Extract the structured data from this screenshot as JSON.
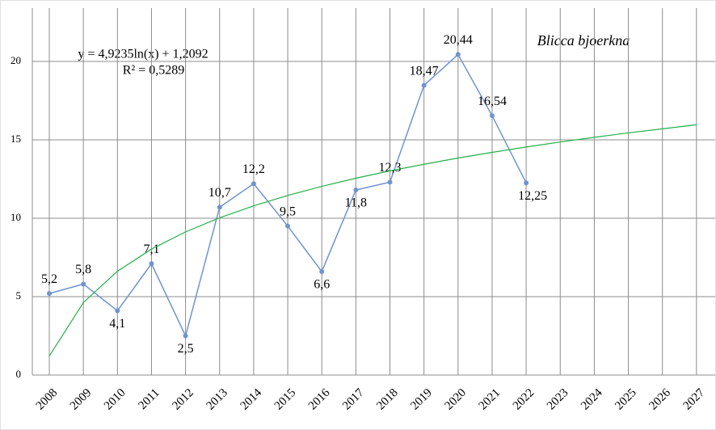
{
  "chart_data": {
    "type": "line",
    "title": "Blicca bjoerkna",
    "annotations": [
      "y = 4,9235ln(x) + 1,2092",
      "R² = 0,5289"
    ],
    "categories": [
      "2008",
      "2009",
      "2010",
      "2011",
      "2012",
      "2013",
      "2014",
      "2015",
      "2016",
      "2017",
      "2018",
      "2019",
      "2020",
      "2021",
      "2022",
      "2023",
      "2024",
      "2025",
      "2026",
      "2027"
    ],
    "series": [
      {
        "color": "#6f94cf",
        "values": [
          5.2,
          5.8,
          4.1,
          7.1,
          2.5,
          10.7,
          12.2,
          9.5,
          6.6,
          11.8,
          12.3,
          18.47,
          20.44,
          16.54,
          12.25,
          null,
          null,
          null,
          null,
          null
        ],
        "value_labels": [
          "5,2",
          "5,8",
          "4,1",
          "7,1",
          "2,5",
          "10,7",
          "12,2",
          "9,5",
          "6,6",
          "11,8",
          "12,3",
          "18,47",
          "20,44",
          "16,54",
          "12,25",
          null,
          null,
          null,
          null,
          null
        ]
      },
      {
        "color": "#22b04a",
        "values": [
          1.21,
          4.62,
          6.62,
          8.03,
          9.13,
          10.03,
          10.79,
          11.45,
          12.03,
          12.55,
          13.02,
          13.44,
          13.84,
          14.2,
          14.54,
          14.86,
          15.16,
          15.44,
          15.7,
          15.96
        ]
      }
    ],
    "ylim": [
      0,
      23.4
    ],
    "yticks": [
      0,
      5,
      10,
      15,
      20
    ],
    "grid": true
  }
}
